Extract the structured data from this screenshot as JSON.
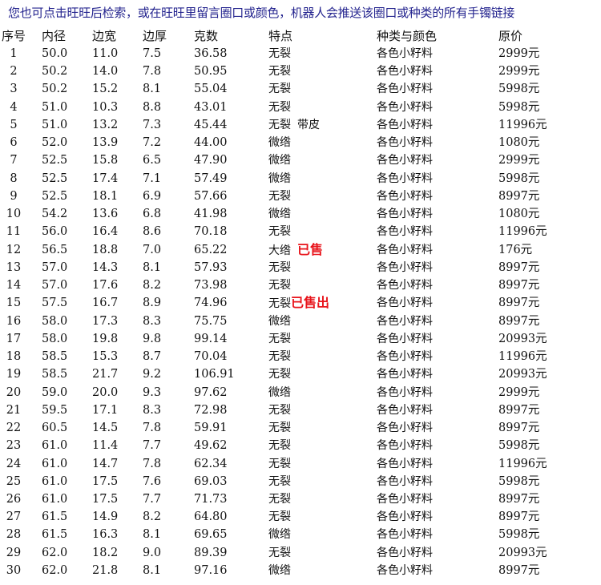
{
  "title": "您也可点击旺旺后检索，或在旺旺里留言圈口或颜色，机器人会推送该圈口或种类的所有手镯链接",
  "colors": {
    "title": "#23238e",
    "sold_tag": "#e8141b"
  },
  "headers": [
    "序号",
    "内径",
    "边宽",
    "边厚",
    "克数",
    "特点",
    "种类与颜色",
    "原价"
  ],
  "rows": [
    {
      "cells": [
        "1",
        "50.0",
        "11.0",
        "7.5",
        "36.58",
        "无裂",
        "各色小籽料",
        "2999元"
      ]
    },
    {
      "cells": [
        "2",
        "50.2",
        "14.0",
        "7.8",
        "50.95",
        "无裂",
        "各色小籽料",
        "2999元"
      ]
    },
    {
      "cells": [
        "3",
        "50.2",
        "15.2",
        "8.1",
        "55.04",
        "无裂",
        "各色小籽料",
        "5998元"
      ]
    },
    {
      "cells": [
        "4",
        "51.0",
        "10.3",
        "8.8",
        "43.01",
        "无裂",
        "各色小籽料",
        "5998元"
      ]
    },
    {
      "cells": [
        "5",
        "51.0",
        "13.2",
        "7.3",
        "45.44",
        "无裂",
        "各色小籽料",
        "11996元"
      ],
      "extra": "带皮"
    },
    {
      "cells": [
        "6",
        "52.0",
        "13.9",
        "7.2",
        "44.00",
        "微绺",
        "各色小籽料",
        "1080元"
      ]
    },
    {
      "cells": [
        "7",
        "52.5",
        "15.8",
        "6.5",
        "47.90",
        "微绺",
        "各色小籽料",
        "2999元"
      ]
    },
    {
      "cells": [
        "8",
        "52.5",
        "17.4",
        "7.1",
        "57.49",
        "微绺",
        "各色小籽料",
        "5998元"
      ]
    },
    {
      "cells": [
        "9",
        "52.5",
        "18.1",
        "6.9",
        "57.66",
        "无裂",
        "各色小籽料",
        "8997元"
      ]
    },
    {
      "cells": [
        "10",
        "54.2",
        "13.6",
        "6.8",
        "41.98",
        "微绺",
        "各色小籽料",
        "1080元"
      ]
    },
    {
      "cells": [
        "11",
        "56.0",
        "16.4",
        "8.6",
        "70.18",
        "无裂",
        "各色小籽料",
        "11996元"
      ]
    },
    {
      "cells": [
        "12",
        "56.5",
        "18.8",
        "7.0",
        "65.22",
        "大绺",
        "各色小籽料",
        "176元"
      ],
      "sold": "已售"
    },
    {
      "cells": [
        "13",
        "57.0",
        "14.3",
        "8.1",
        "57.93",
        "无裂",
        "各色小籽料",
        "8997元"
      ]
    },
    {
      "cells": [
        "14",
        "57.0",
        "17.6",
        "8.2",
        "73.98",
        "无裂",
        "各色小籽料",
        "8997元"
      ]
    },
    {
      "cells": [
        "15",
        "57.5",
        "16.7",
        "8.9",
        "74.96",
        "无裂",
        "各色小籽料",
        "8997元"
      ],
      "sold": "已售出"
    },
    {
      "cells": [
        "16",
        "58.0",
        "17.3",
        "8.3",
        "75.75",
        "微绺",
        "各色小籽料",
        "8997元"
      ]
    },
    {
      "cells": [
        "17",
        "58.0",
        "19.8",
        "9.8",
        "99.14",
        "无裂",
        "各色小籽料",
        "20993元"
      ]
    },
    {
      "cells": [
        "18",
        "58.5",
        "15.3",
        "8.7",
        "70.04",
        "无裂",
        "各色小籽料",
        "11996元"
      ]
    },
    {
      "cells": [
        "19",
        "58.5",
        "21.7",
        "9.2",
        "106.91",
        "无裂",
        "各色小籽料",
        "20993元"
      ]
    },
    {
      "cells": [
        "20",
        "59.0",
        "20.0",
        "9.3",
        "97.62",
        "微绺",
        "各色小籽料",
        "2999元"
      ]
    },
    {
      "cells": [
        "21",
        "59.5",
        "17.1",
        "8.3",
        "72.98",
        "无裂",
        "各色小籽料",
        "8997元"
      ]
    },
    {
      "cells": [
        "22",
        "60.5",
        "14.5",
        "7.8",
        "59.91",
        "无裂",
        "各色小籽料",
        "8997元"
      ]
    },
    {
      "cells": [
        "23",
        "61.0",
        "11.4",
        "7.7",
        "49.62",
        "无裂",
        "各色小籽料",
        "5998元"
      ]
    },
    {
      "cells": [
        "24",
        "61.0",
        "14.7",
        "7.8",
        "62.34",
        "无裂",
        "各色小籽料",
        "11996元"
      ]
    },
    {
      "cells": [
        "25",
        "61.0",
        "17.5",
        "7.6",
        "69.03",
        "无裂",
        "各色小籽料",
        "5998元"
      ]
    },
    {
      "cells": [
        "26",
        "61.0",
        "17.5",
        "7.7",
        "71.73",
        "无裂",
        "各色小籽料",
        "8997元"
      ]
    },
    {
      "cells": [
        "27",
        "61.5",
        "14.9",
        "8.2",
        "64.80",
        "无裂",
        "各色小籽料",
        "8997元"
      ]
    },
    {
      "cells": [
        "28",
        "61.5",
        "16.3",
        "8.1",
        "69.65",
        "微绺",
        "各色小籽料",
        "5998元"
      ]
    },
    {
      "cells": [
        "29",
        "62.0",
        "18.2",
        "9.0",
        "89.39",
        "无裂",
        "各色小籽料",
        "20993元"
      ]
    },
    {
      "cells": [
        "30",
        "62.0",
        "21.8",
        "8.1",
        "97.16",
        "微绺",
        "各色小籽料",
        "8997元"
      ]
    }
  ]
}
